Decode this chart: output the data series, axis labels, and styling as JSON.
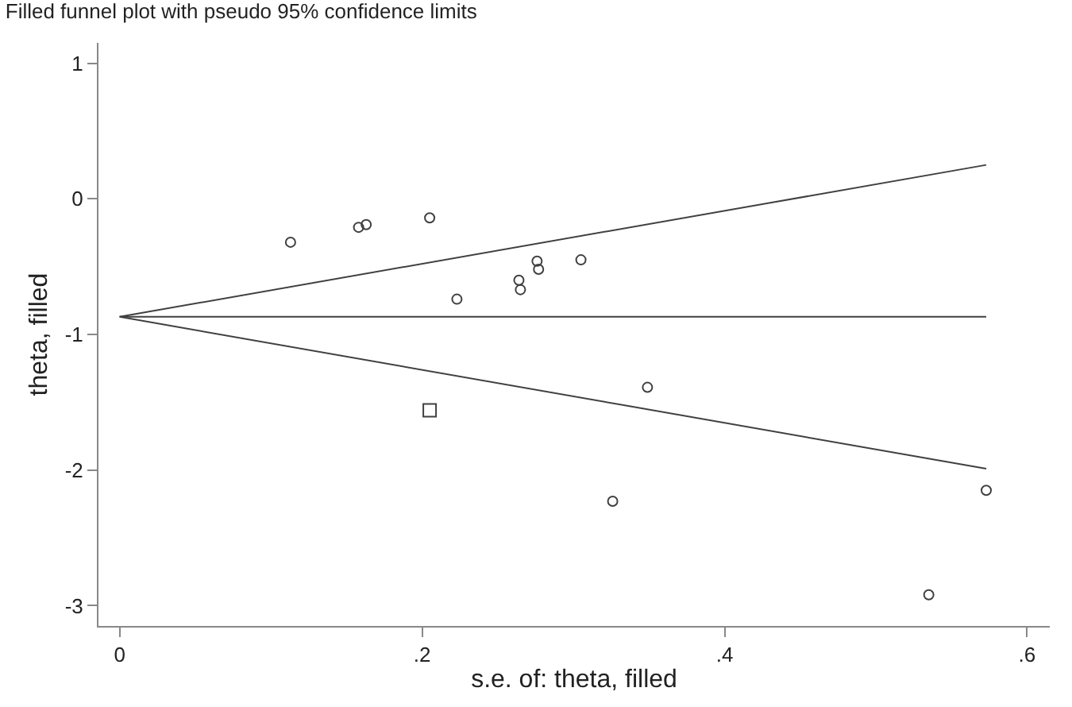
{
  "chart_data": {
    "type": "scatter",
    "title": "Filled funnel plot with pseudo 95% confidence limits",
    "xlabel": "s.e. of: theta, filled",
    "ylabel": "theta, filled",
    "xlim": [
      -0.014,
      0.615
    ],
    "ylim": [
      -3.15,
      1.15
    ],
    "xticks": [
      0,
      {
        "value": 0.2,
        "label": ".2"
      },
      {
        "value": 0.4,
        "label": ".4"
      },
      {
        "value": 0.6,
        "label": ".6"
      }
    ],
    "yticks": [
      -3,
      -2,
      -1,
      0,
      1
    ],
    "series": [
      {
        "type": "line",
        "color": "#404040",
        "x": [
          0,
          0.573
        ],
        "values": [
          -0.87,
          0.25
        ]
      },
      {
        "type": "line",
        "color": "#404040",
        "x": [
          0,
          0.573
        ],
        "values": [
          -0.87,
          -0.87
        ]
      },
      {
        "type": "line",
        "color": "#404040",
        "x": [
          0,
          0.573
        ],
        "values": [
          -0.87,
          -1.99
        ]
      },
      {
        "marker": "circle",
        "color": "#404040",
        "x": [
          0.113,
          0.158,
          0.163,
          0.205,
          0.223,
          0.264,
          0.265,
          0.276,
          0.277,
          0.305,
          0.349,
          0.326,
          0.535,
          0.573
        ],
        "values": [
          -0.32,
          -0.21,
          -0.19,
          -0.14,
          -0.74,
          -0.6,
          -0.67,
          -0.46,
          -0.52,
          -0.45,
          -1.39,
          -2.23,
          -2.92,
          -2.15
        ]
      },
      {
        "marker": "square",
        "color": "#404040",
        "x": [
          0.205
        ],
        "values": [
          -1.56
        ]
      }
    ]
  }
}
